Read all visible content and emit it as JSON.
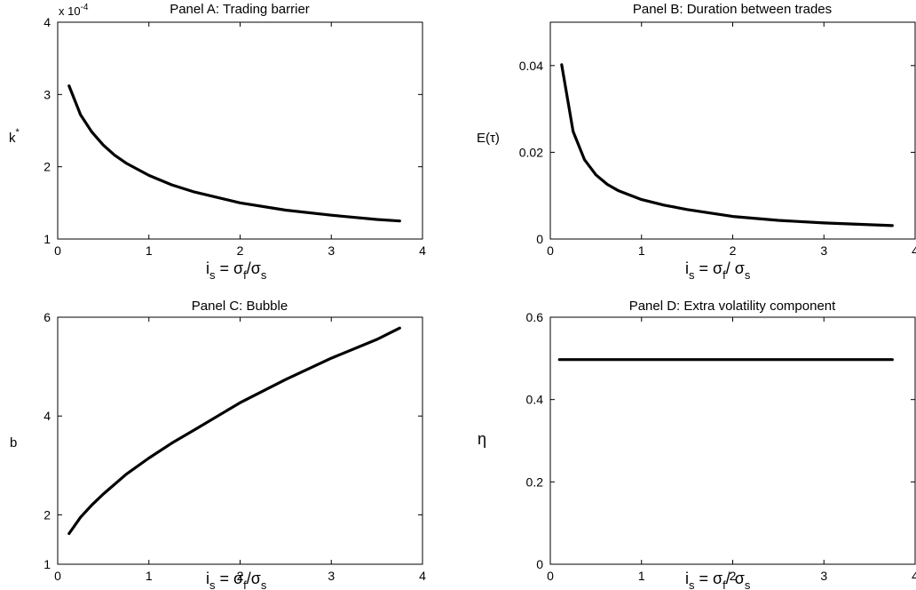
{
  "chart_data": [
    {
      "type": "line",
      "title": "Panel A: Trading barrier",
      "xlabel": "i_s = σ_f/σ_s",
      "ylabel": "k*",
      "y_multiplier": "x 10^-4",
      "xlim": [
        0,
        4
      ],
      "ylim": [
        1,
        4
      ],
      "x_ticks": [
        "0",
        "1",
        "2",
        "3",
        "4"
      ],
      "y_ticks": [
        "1",
        "2",
        "3",
        "4"
      ],
      "series": [
        {
          "x": [
            0.125,
            0.25,
            0.375,
            0.5,
            0.625,
            0.75,
            1.0,
            1.25,
            1.5,
            2.0,
            2.5,
            3.0,
            3.5,
            3.75
          ],
          "y": [
            3.12,
            2.72,
            2.48,
            2.3,
            2.16,
            2.05,
            1.88,
            1.75,
            1.65,
            1.5,
            1.4,
            1.33,
            1.27,
            1.25
          ]
        }
      ]
    },
    {
      "type": "line",
      "title": "Panel B: Duration  between trades",
      "xlabel": "i_s = σ_f/ σ_s",
      "ylabel": "E(τ)",
      "xlim": [
        0,
        4
      ],
      "ylim": [
        0,
        0.05
      ],
      "x_ticks": [
        "0",
        "1",
        "2",
        "3",
        "4"
      ],
      "y_ticks": [
        "0",
        "0.02",
        "0.04"
      ],
      "y_tick_values": [
        0,
        0.02,
        0.04
      ],
      "series": [
        {
          "x": [
            0.125,
            0.25,
            0.375,
            0.5,
            0.625,
            0.75,
            1.0,
            1.25,
            1.5,
            2.0,
            2.5,
            3.0,
            3.5,
            3.75
          ],
          "y": [
            0.0402,
            0.0248,
            0.0183,
            0.0148,
            0.0126,
            0.0111,
            0.0091,
            0.0078,
            0.0068,
            0.0052,
            0.0043,
            0.0037,
            0.0033,
            0.0031
          ]
        }
      ]
    },
    {
      "type": "line",
      "title": "Panel C: Bubble",
      "xlabel": "i_s = σ_f/σ_s",
      "ylabel": "b",
      "xlim": [
        0,
        4
      ],
      "ylim": [
        1,
        6
      ],
      "x_ticks": [
        "0",
        "1",
        "2",
        "3",
        "4"
      ],
      "y_ticks": [
        "1",
        "2",
        "4",
        "6"
      ],
      "y_tick_values": [
        1,
        2,
        4,
        6
      ],
      "series": [
        {
          "x": [
            0.125,
            0.25,
            0.375,
            0.5,
            0.75,
            1.0,
            1.25,
            1.5,
            2.0,
            2.5,
            3.0,
            3.5,
            3.75
          ],
          "y": [
            1.62,
            1.95,
            2.2,
            2.42,
            2.82,
            3.15,
            3.45,
            3.72,
            4.27,
            4.74,
            5.17,
            5.55,
            5.78
          ]
        }
      ]
    },
    {
      "type": "line",
      "title": "Panel D: Extra volatility component",
      "xlabel": "i_s = σ_f/ σ_s",
      "ylabel": "η",
      "xlim": [
        0,
        4
      ],
      "ylim": [
        0,
        0.6
      ],
      "x_ticks": [
        "0",
        "1",
        "2",
        "3",
        "4"
      ],
      "y_ticks": [
        "0",
        "0.2",
        "0.4",
        "0.6"
      ],
      "y_tick_values": [
        0,
        0.2,
        0.4,
        0.6
      ],
      "series": [
        {
          "x": [
            0.1,
            3.75
          ],
          "y": [
            0.497,
            0.497
          ]
        }
      ]
    }
  ]
}
